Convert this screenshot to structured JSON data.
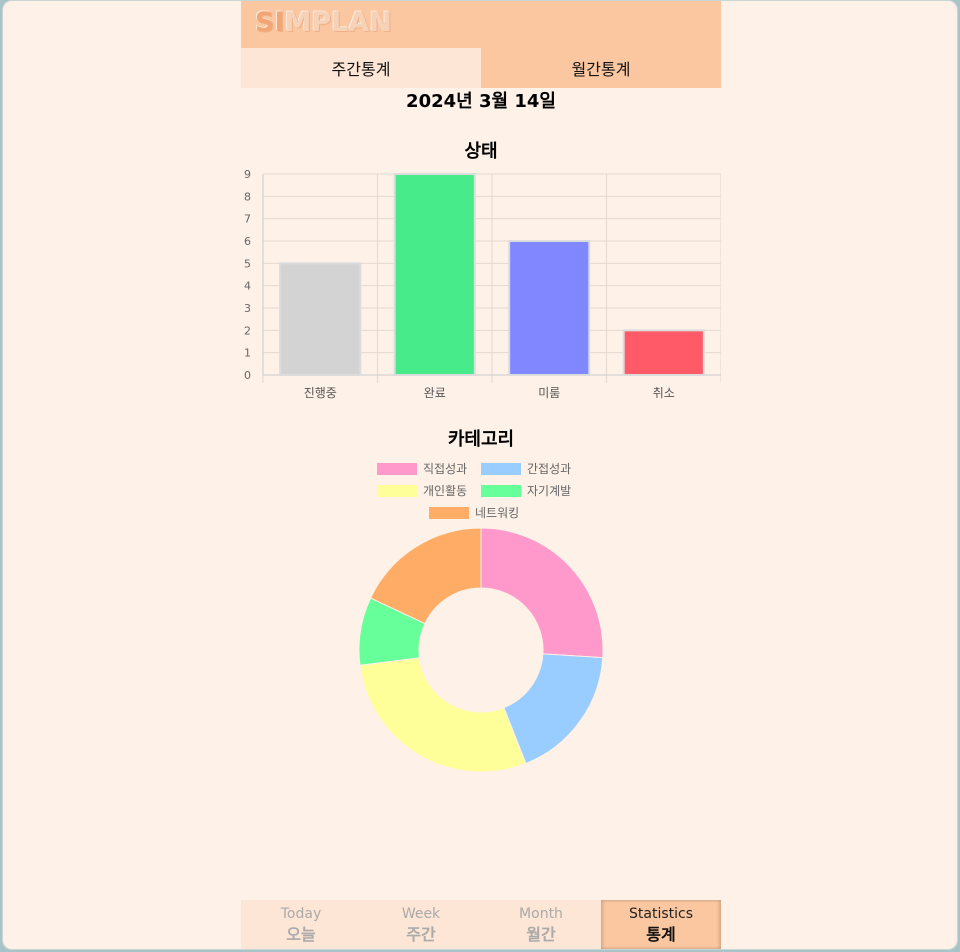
{
  "app": {
    "logo_part1": "SI",
    "logo_part2": "MPLAN"
  },
  "tabs": [
    {
      "label": "주간통계",
      "active": true
    },
    {
      "label": "월간통계",
      "active": false
    }
  ],
  "date": "2024년 3월 14일",
  "colors": {
    "header": "#fac7a0",
    "background": "#fdf1e8",
    "tab_active": "#fde6d5"
  },
  "chart_data": [
    {
      "type": "bar",
      "title": "상태",
      "categories": [
        "진행중",
        "완료",
        "미룸",
        "취소"
      ],
      "values": [
        5,
        9,
        6,
        2
      ],
      "colors": [
        "#d3d3d3",
        "#47eb8a",
        "#8087ff",
        "#ff5a68"
      ],
      "ylim": [
        0,
        9
      ],
      "yticks": [
        0,
        1,
        2,
        3,
        4,
        5,
        6,
        7,
        8,
        9
      ],
      "grid": true
    },
    {
      "type": "pie",
      "variant": "doughnut",
      "title": "카테고리",
      "labels": [
        "직접성과",
        "간접성과",
        "개인활동",
        "자기계발",
        "네트워킹"
      ],
      "values": [
        26,
        18,
        29,
        9,
        18
      ],
      "colors": [
        "#ff99cc",
        "#99ccff",
        "#ffff99",
        "#66ff99",
        "#ffad66"
      ],
      "legend_position": "top"
    }
  ],
  "bottom_nav": [
    {
      "en": "Today",
      "ko": "오늘",
      "active": false
    },
    {
      "en": "Week",
      "ko": "주간",
      "active": false
    },
    {
      "en": "Month",
      "ko": "월간",
      "active": false
    },
    {
      "en": "Statistics",
      "ko": "통계",
      "active": true
    }
  ]
}
